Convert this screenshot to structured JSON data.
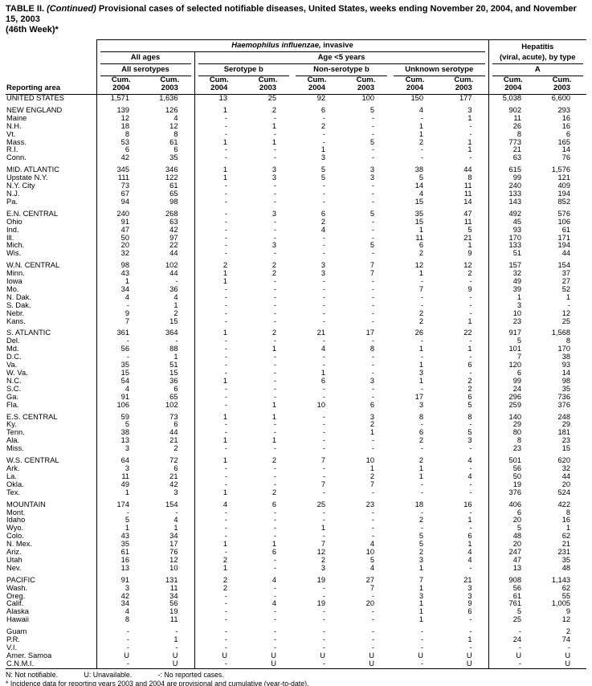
{
  "title": {
    "part1": "TABLE II.",
    "part2": " (Continued)",
    "part3": " Provisional cases of selected notifiable diseases, United States, weeks ending November 20, 2004, and November 15, 2003",
    "part4": "(46th Week)*"
  },
  "header": {
    "reporting_area": "Reporting area",
    "hi_italic": "Haemophilus influenzae,",
    "hi_rest": " invasive",
    "hep_line1": "Hepatitis",
    "hep_line2": "(viral, acute), by type",
    "all_ages": "All ages",
    "age_under5": "Age <5 years",
    "all_serotypes": "All serotypes",
    "serotype_b": "Serotype b",
    "non_serotype_b": "Non-serotype b",
    "unknown_serotype": "Unknown serotype",
    "type_a": "A"
  },
  "table": {
    "columns": [
      {
        "cum": "Cum.",
        "year": "2004"
      },
      {
        "cum": "Cum.",
        "year": "2003"
      },
      {
        "cum": "Cum.",
        "year": "2004"
      },
      {
        "cum": "Cum.",
        "year": "2003"
      },
      {
        "cum": "Cum.",
        "year": "2004"
      },
      {
        "cum": "Cum.",
        "year": "2003"
      },
      {
        "cum": "Cum.",
        "year": "2004"
      },
      {
        "cum": "Cum.",
        "year": "2003"
      },
      {
        "cum": "Cum.",
        "year": "2004"
      },
      {
        "cum": "Cum.",
        "year": "2003"
      }
    ],
    "rows": [
      {
        "area": "UNITED STATES",
        "v": [
          "1,571",
          "1,636",
          "13",
          "25",
          "92",
          "100",
          "150",
          "177",
          "5,038",
          "6,600"
        ]
      },
      {
        "spacer": true
      },
      {
        "area": "NEW ENGLAND",
        "v": [
          "139",
          "126",
          "1",
          "2",
          "6",
          "5",
          "4",
          "3",
          "902",
          "293"
        ]
      },
      {
        "area": "Maine",
        "v": [
          "12",
          "4",
          "-",
          "-",
          "-",
          "-",
          "-",
          "1",
          "11",
          "16"
        ]
      },
      {
        "area": "N.H.",
        "v": [
          "18",
          "12",
          "-",
          "1",
          "2",
          "-",
          "1",
          "-",
          "26",
          "16"
        ]
      },
      {
        "area": "Vt.",
        "v": [
          "8",
          "8",
          "-",
          "-",
          "-",
          "-",
          "1",
          "-",
          "8",
          "6"
        ]
      },
      {
        "area": "Mass.",
        "v": [
          "53",
          "61",
          "1",
          "1",
          "-",
          "5",
          "2",
          "1",
          "773",
          "165"
        ]
      },
      {
        "area": "R.I.",
        "v": [
          "6",
          "6",
          "-",
          "-",
          "1",
          "-",
          "-",
          "1",
          "21",
          "14"
        ]
      },
      {
        "area": "Conn.",
        "v": [
          "42",
          "35",
          "-",
          "-",
          "3",
          "-",
          "-",
          "-",
          "63",
          "76"
        ]
      },
      {
        "spacer": true
      },
      {
        "area": "MID. ATLANTIC",
        "v": [
          "345",
          "346",
          "1",
          "3",
          "5",
          "3",
          "38",
          "44",
          "615",
          "1,576"
        ]
      },
      {
        "area": "Upstate N.Y.",
        "v": [
          "111",
          "122",
          "1",
          "3",
          "5",
          "3",
          "5",
          "8",
          "99",
          "121"
        ]
      },
      {
        "area": "N.Y. City",
        "v": [
          "73",
          "61",
          "-",
          "-",
          "-",
          "-",
          "14",
          "11",
          "240",
          "409"
        ]
      },
      {
        "area": "N.J.",
        "v": [
          "67",
          "65",
          "-",
          "-",
          "-",
          "-",
          "4",
          "11",
          "133",
          "194"
        ]
      },
      {
        "area": "Pa.",
        "v": [
          "94",
          "98",
          "-",
          "-",
          "-",
          "-",
          "15",
          "14",
          "143",
          "852"
        ]
      },
      {
        "spacer": true
      },
      {
        "area": "E.N. CENTRAL",
        "v": [
          "240",
          "268",
          "-",
          "3",
          "6",
          "5",
          "35",
          "47",
          "492",
          "576"
        ]
      },
      {
        "area": "Ohio",
        "v": [
          "91",
          "63",
          "-",
          "-",
          "2",
          "-",
          "15",
          "11",
          "45",
          "106"
        ]
      },
      {
        "area": "Ind.",
        "v": [
          "47",
          "42",
          "-",
          "-",
          "4",
          "-",
          "1",
          "5",
          "93",
          "61"
        ]
      },
      {
        "area": "Ill.",
        "v": [
          "50",
          "97",
          "-",
          "-",
          "-",
          "-",
          "11",
          "21",
          "170",
          "171"
        ]
      },
      {
        "area": "Mich.",
        "v": [
          "20",
          "22",
          "-",
          "3",
          "-",
          "5",
          "6",
          "1",
          "133",
          "194"
        ]
      },
      {
        "area": "Wis.",
        "v": [
          "32",
          "44",
          "-",
          "-",
          "-",
          "-",
          "2",
          "9",
          "51",
          "44"
        ]
      },
      {
        "spacer": true
      },
      {
        "area": "W.N. CENTRAL",
        "v": [
          "98",
          "102",
          "2",
          "2",
          "3",
          "7",
          "12",
          "12",
          "157",
          "154"
        ]
      },
      {
        "area": "Minn.",
        "v": [
          "43",
          "44",
          "1",
          "2",
          "3",
          "7",
          "1",
          "2",
          "32",
          "37"
        ]
      },
      {
        "area": "Iowa",
        "v": [
          "1",
          "-",
          "1",
          "-",
          "-",
          "-",
          "-",
          "-",
          "49",
          "27"
        ]
      },
      {
        "area": "Mo.",
        "v": [
          "34",
          "36",
          "-",
          "-",
          "-",
          "-",
          "7",
          "9",
          "39",
          "52"
        ]
      },
      {
        "area": "N. Dak.",
        "v": [
          "4",
          "4",
          "-",
          "-",
          "-",
          "-",
          "-",
          "-",
          "1",
          "1"
        ]
      },
      {
        "area": "S. Dak.",
        "v": [
          "-",
          "1",
          "-",
          "-",
          "-",
          "-",
          "-",
          "-",
          "3",
          "-"
        ]
      },
      {
        "area": "Nebr.",
        "v": [
          "9",
          "2",
          "-",
          "-",
          "-",
          "-",
          "2",
          "-",
          "10",
          "12"
        ]
      },
      {
        "area": "Kans.",
        "v": [
          "7",
          "15",
          "-",
          "-",
          "-",
          "-",
          "2",
          "1",
          "23",
          "25"
        ]
      },
      {
        "spacer": true
      },
      {
        "area": "S. ATLANTIC",
        "v": [
          "361",
          "364",
          "1",
          "2",
          "21",
          "17",
          "26",
          "22",
          "917",
          "1,568"
        ]
      },
      {
        "area": "Del.",
        "v": [
          "-",
          "-",
          "-",
          "-",
          "-",
          "-",
          "-",
          "-",
          "5",
          "8"
        ]
      },
      {
        "area": "Md.",
        "v": [
          "56",
          "88",
          "-",
          "1",
          "4",
          "8",
          "1",
          "1",
          "101",
          "170"
        ]
      },
      {
        "area": "D.C.",
        "v": [
          "-",
          "1",
          "-",
          "-",
          "-",
          "-",
          "-",
          "-",
          "7",
          "38"
        ]
      },
      {
        "area": "Va.",
        "v": [
          "35",
          "51",
          "-",
          "-",
          "-",
          "-",
          "1",
          "6",
          "120",
          "93"
        ]
      },
      {
        "area": "W. Va.",
        "v": [
          "15",
          "15",
          "-",
          "-",
          "1",
          "-",
          "3",
          "-",
          "6",
          "14"
        ]
      },
      {
        "area": "N.C.",
        "v": [
          "54",
          "36",
          "1",
          "-",
          "6",
          "3",
          "1",
          "2",
          "99",
          "98"
        ]
      },
      {
        "area": "S.C.",
        "v": [
          "4",
          "6",
          "-",
          "-",
          "-",
          "-",
          "-",
          "2",
          "24",
          "35"
        ]
      },
      {
        "area": "Ga.",
        "v": [
          "91",
          "65",
          "-",
          "-",
          "-",
          "-",
          "17",
          "6",
          "296",
          "736"
        ]
      },
      {
        "area": "Fla.",
        "v": [
          "106",
          "102",
          "-",
          "1",
          "10",
          "6",
          "3",
          "5",
          "259",
          "376"
        ]
      },
      {
        "spacer": true
      },
      {
        "area": "E.S. CENTRAL",
        "v": [
          "59",
          "73",
          "1",
          "1",
          "-",
          "3",
          "8",
          "8",
          "140",
          "248"
        ]
      },
      {
        "area": "Ky.",
        "v": [
          "5",
          "6",
          "-",
          "-",
          "-",
          "2",
          "-",
          "-",
          "29",
          "29"
        ]
      },
      {
        "area": "Tenn.",
        "v": [
          "38",
          "44",
          "-",
          "-",
          "-",
          "1",
          "6",
          "5",
          "80",
          "181"
        ]
      },
      {
        "area": "Ala.",
        "v": [
          "13",
          "21",
          "1",
          "1",
          "-",
          "-",
          "2",
          "3",
          "8",
          "23"
        ]
      },
      {
        "area": "Miss.",
        "v": [
          "3",
          "2",
          "-",
          "-",
          "-",
          "-",
          "-",
          "-",
          "23",
          "15"
        ]
      },
      {
        "spacer": true
      },
      {
        "area": "W.S. CENTRAL",
        "v": [
          "64",
          "72",
          "1",
          "2",
          "7",
          "10",
          "2",
          "4",
          "501",
          "620"
        ]
      },
      {
        "area": "Ark.",
        "v": [
          "3",
          "6",
          "-",
          "-",
          "-",
          "1",
          "1",
          "-",
          "56",
          "32"
        ]
      },
      {
        "area": "La.",
        "v": [
          "11",
          "21",
          "-",
          "-",
          "-",
          "2",
          "1",
          "4",
          "50",
          "44"
        ]
      },
      {
        "area": "Okla.",
        "v": [
          "49",
          "42",
          "-",
          "-",
          "7",
          "7",
          "-",
          "-",
          "19",
          "20"
        ]
      },
      {
        "area": "Tex.",
        "v": [
          "1",
          "3",
          "1",
          "2",
          "-",
          "-",
          "-",
          "-",
          "376",
          "524"
        ]
      },
      {
        "spacer": true
      },
      {
        "area": "MOUNTAIN",
        "v": [
          "174",
          "154",
          "4",
          "6",
          "25",
          "23",
          "18",
          "16",
          "406",
          "422"
        ]
      },
      {
        "area": "Mont.",
        "v": [
          "-",
          "-",
          "-",
          "-",
          "-",
          "-",
          "-",
          "-",
          "6",
          "8"
        ]
      },
      {
        "area": "Idaho",
        "v": [
          "5",
          "4",
          "-",
          "-",
          "-",
          "-",
          "2",
          "1",
          "20",
          "16"
        ]
      },
      {
        "area": "Wyo.",
        "v": [
          "1",
          "1",
          "-",
          "-",
          "1",
          "-",
          "-",
          "-",
          "5",
          "1"
        ]
      },
      {
        "area": "Colo.",
        "v": [
          "43",
          "34",
          "-",
          "-",
          "-",
          "-",
          "5",
          "6",
          "48",
          "62"
        ]
      },
      {
        "area": "N. Mex.",
        "v": [
          "35",
          "17",
          "1",
          "1",
          "7",
          "4",
          "5",
          "1",
          "20",
          "21"
        ]
      },
      {
        "area": "Ariz.",
        "v": [
          "61",
          "76",
          "-",
          "6",
          "12",
          "10",
          "2",
          "4",
          "247",
          "231"
        ]
      },
      {
        "area": "Utah",
        "v": [
          "16",
          "12",
          "2",
          "-",
          "2",
          "5",
          "3",
          "4",
          "47",
          "35"
        ]
      },
      {
        "area": "Nev.",
        "v": [
          "13",
          "10",
          "1",
          "-",
          "3",
          "4",
          "1",
          "-",
          "13",
          "48"
        ]
      },
      {
        "spacer": true
      },
      {
        "area": "PACIFIC",
        "v": [
          "91",
          "131",
          "2",
          "4",
          "19",
          "27",
          "7",
          "21",
          "908",
          "1,143"
        ]
      },
      {
        "area": "Wash.",
        "v": [
          "3",
          "11",
          "2",
          "-",
          "-",
          "7",
          "1",
          "3",
          "56",
          "62"
        ]
      },
      {
        "area": "Oreg.",
        "v": [
          "42",
          "34",
          "-",
          "-",
          "-",
          "-",
          "3",
          "3",
          "61",
          "55"
        ]
      },
      {
        "area": "Calif.",
        "v": [
          "34",
          "56",
          "-",
          "4",
          "19",
          "20",
          "1",
          "9",
          "761",
          "1,005"
        ]
      },
      {
        "area": "Alaska",
        "v": [
          "4",
          "19",
          "-",
          "-",
          "-",
          "-",
          "1",
          "6",
          "5",
          "9"
        ]
      },
      {
        "area": "Hawaii",
        "v": [
          "8",
          "11",
          "-",
          "-",
          "-",
          "-",
          "1",
          "-",
          "25",
          "12"
        ]
      },
      {
        "spacer": true
      },
      {
        "area": "Guam",
        "v": [
          "-",
          "-",
          "-",
          "-",
          "-",
          "-",
          "-",
          "-",
          "-",
          "2"
        ]
      },
      {
        "area": "P.R.",
        "v": [
          "-",
          "1",
          "-",
          "-",
          "-",
          "-",
          "-",
          "1",
          "24",
          "74"
        ]
      },
      {
        "area": "V.I.",
        "v": [
          "-",
          "-",
          "-",
          "-",
          "-",
          "-",
          "-",
          "-",
          "-",
          "-"
        ]
      },
      {
        "area": "Amer. Samoa",
        "v": [
          "U",
          "U",
          "U",
          "U",
          "U",
          "U",
          "U",
          "U",
          "U",
          "U"
        ]
      },
      {
        "area": "C.N.M.I.",
        "v": [
          "-",
          "U",
          "-",
          "U",
          "-",
          "U",
          "-",
          "U",
          "-",
          "U"
        ]
      }
    ]
  },
  "footnotes": {
    "seg1": "N: Not notifiable.",
    "seg2": "U: Unavailable.",
    "seg3": "-: No reported cases.",
    "line2": "* Incidence data for reporting years 2003 and 2004 are provisional and cumulative (year-to-date)."
  }
}
